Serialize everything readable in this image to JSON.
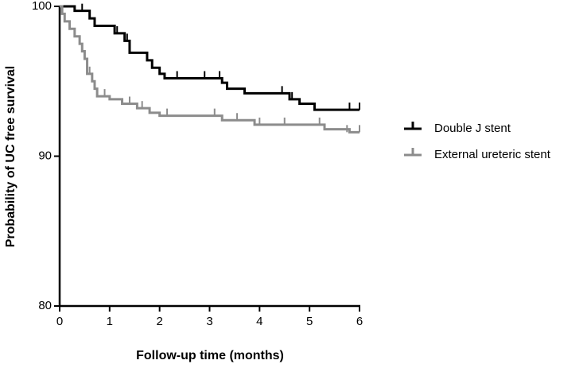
{
  "chart_data": {
    "type": "km",
    "xlabel": "Follow-up time (months)",
    "ylabel": "Probability of UC free survival",
    "xlim": [
      0,
      6
    ],
    "xticks": [
      0,
      1,
      2,
      3,
      4,
      5,
      6
    ],
    "ylim": [
      80,
      100
    ],
    "yticks": [
      80,
      90,
      100
    ],
    "legend": "right",
    "series": [
      {
        "name": "Double J stent",
        "color": "#000000",
        "x": [
          0,
          0.3,
          0.6,
          0.7,
          1.1,
          1.3,
          1.4,
          1.75,
          1.85,
          2.0,
          2.1,
          3.25,
          3.35,
          3.7,
          4.6,
          4.8,
          5.1,
          6
        ],
        "values": [
          100,
          99.7,
          99.2,
          98.7,
          98.2,
          97.7,
          96.9,
          96.4,
          95.9,
          95.5,
          95.2,
          94.9,
          94.5,
          94.2,
          93.8,
          93.5,
          93.1,
          93.1
        ],
        "censored_x": [
          0.45,
          1.15,
          1.35,
          2.35,
          2.9,
          3.2,
          4.45,
          4.65,
          5.8,
          6.0
        ],
        "censored_y": [
          99.7,
          98.2,
          97.7,
          95.2,
          95.2,
          95.2,
          94.2,
          93.8,
          93.1,
          93.1
        ]
      },
      {
        "name": "External ureteric stent",
        "color": "#8c8c8c",
        "x": [
          0,
          0.05,
          0.1,
          0.2,
          0.3,
          0.4,
          0.45,
          0.5,
          0.55,
          0.65,
          0.7,
          0.75,
          1.0,
          1.25,
          1.55,
          1.8,
          2.0,
          3.25,
          3.9,
          5.3,
          5.8,
          6
        ],
        "values": [
          100,
          99.5,
          99.0,
          98.5,
          98.0,
          97.5,
          97.0,
          96.5,
          95.5,
          95.0,
          94.5,
          94.0,
          93.8,
          93.5,
          93.2,
          92.9,
          92.7,
          92.4,
          92.1,
          91.8,
          91.6,
          91.6
        ],
        "censored_x": [
          0.6,
          0.9,
          1.4,
          1.65,
          2.15,
          3.1,
          3.55,
          4.0,
          4.5,
          5.2,
          5.75,
          6.0
        ],
        "censored_y": [
          95.5,
          94.0,
          93.5,
          93.2,
          92.7,
          92.7,
          92.4,
          92.1,
          92.1,
          92.1,
          91.6,
          91.6
        ]
      }
    ]
  }
}
